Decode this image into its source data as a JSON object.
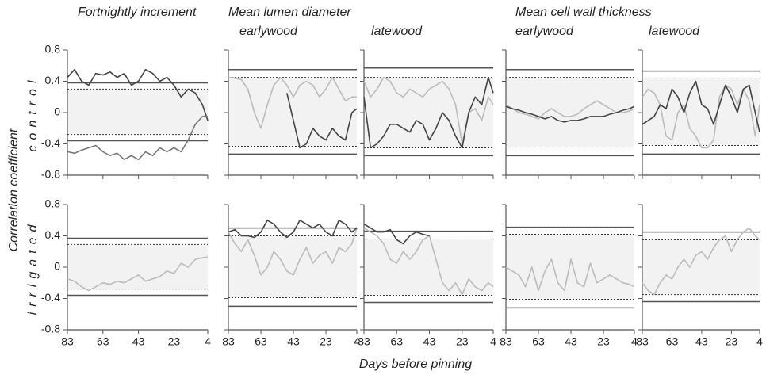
{
  "figure": {
    "groups": [
      {
        "title": "Fortnightly increment"
      },
      {
        "title": "Mean lumen diameter",
        "subtitles": [
          "earlywood",
          "latewood"
        ]
      },
      {
        "title": "Mean cell wall thickness",
        "subtitles": [
          "earlywood",
          "latewood"
        ]
      }
    ],
    "ylabel": "Correlation coefficient",
    "rows": [
      "control",
      "irrigated"
    ],
    "xlabel": "Days before pinning"
  },
  "chart_data": [
    {
      "type": "line",
      "x": [
        83,
        79,
        75,
        71,
        67,
        63,
        59,
        55,
        51,
        47,
        43,
        39,
        35,
        31,
        27,
        23,
        19,
        15,
        11,
        7,
        4
      ],
      "xlim": [
        83,
        4
      ],
      "ylim": [
        -0.8,
        0.8
      ],
      "xticks": [
        83,
        63,
        43,
        23,
        4
      ],
      "yticks": [
        0.8,
        0.4,
        0,
        -0.4,
        -0.8
      ],
      "thresholds": [
        0.38,
        -0.36
      ],
      "dotted": [
        0.3,
        -0.28
      ],
      "series": [
        {
          "color": "#444444",
          "values": [
            0.45,
            0.55,
            0.4,
            0.35,
            0.5,
            0.48,
            0.52,
            0.45,
            0.5,
            0.35,
            0.4,
            0.55,
            0.5,
            0.4,
            0.45,
            0.35,
            0.2,
            0.3,
            0.25,
            0.1,
            -0.1
          ]
        },
        {
          "color": "#777777",
          "values": [
            -0.5,
            -0.52,
            -0.48,
            -0.45,
            -0.42,
            -0.5,
            -0.55,
            -0.52,
            -0.6,
            -0.55,
            -0.6,
            -0.5,
            -0.55,
            -0.45,
            -0.5,
            -0.45,
            -0.5,
            -0.35,
            -0.15,
            -0.05,
            -0.05
          ]
        }
      ]
    },
    {
      "type": "line",
      "x": [
        83,
        79,
        75,
        71,
        67,
        63,
        59,
        55,
        51,
        47,
        43,
        39,
        35,
        31,
        27,
        23,
        19,
        15,
        11,
        7,
        4
      ],
      "xlim": [
        83,
        4
      ],
      "ylim": [
        -0.8,
        0.8
      ],
      "xticks": [
        83,
        63,
        43,
        23,
        4
      ],
      "yticks": [
        0.8,
        0.4,
        0,
        -0.4,
        -0.8
      ],
      "thresholds": [
        0.55,
        -0.53
      ],
      "dotted": [
        0.45,
        -0.43
      ],
      "series": [
        {
          "color": "#bbbbbb",
          "values": [
            0.45,
            0.44,
            0.42,
            0.3,
            0.0,
            -0.2,
            0.1,
            0.35,
            0.45,
            0.35,
            0.2,
            0.35,
            0.4,
            0.35,
            0.2,
            0.3,
            0.45,
            0.3,
            0.15,
            0.2,
            0.2
          ]
        },
        {
          "color": "#444444",
          "values": [
            null,
            null,
            null,
            null,
            null,
            null,
            null,
            null,
            null,
            0.25,
            -0.1,
            -0.45,
            -0.4,
            -0.2,
            -0.3,
            -0.35,
            -0.2,
            -0.3,
            -0.35,
            0.0,
            0.05
          ]
        }
      ]
    },
    {
      "type": "line",
      "x": [
        83,
        79,
        75,
        71,
        67,
        63,
        59,
        55,
        51,
        47,
        43,
        39,
        35,
        31,
        27,
        23,
        19,
        15,
        11,
        7,
        4
      ],
      "xlim": [
        83,
        4
      ],
      "ylim": [
        -0.8,
        0.8
      ],
      "xticks": [
        83,
        63,
        43,
        23,
        4
      ],
      "yticks": [
        0.8,
        0.4,
        0,
        -0.4,
        -0.8
      ],
      "thresholds": [
        0.57,
        -0.55
      ],
      "dotted": [
        0.45,
        -0.45
      ],
      "series": [
        {
          "color": "#bbbbbb",
          "values": [
            0.4,
            0.2,
            0.3,
            0.45,
            0.4,
            0.25,
            0.2,
            0.3,
            0.25,
            0.2,
            0.3,
            0.35,
            0.4,
            0.3,
            0.1,
            -0.4,
            0.0,
            0.05,
            -0.1,
            0.2,
            0.1
          ]
        },
        {
          "color": "#444444",
          "values": [
            0.2,
            -0.45,
            -0.4,
            -0.3,
            -0.15,
            -0.15,
            -0.2,
            -0.25,
            -0.1,
            -0.15,
            -0.35,
            -0.2,
            0.0,
            -0.1,
            -0.3,
            -0.45,
            0.0,
            0.2,
            0.1,
            0.45,
            0.25
          ]
        }
      ]
    },
    {
      "type": "line",
      "x": [
        83,
        79,
        75,
        71,
        67,
        63,
        59,
        55,
        51,
        47,
        43,
        39,
        35,
        31,
        27,
        23,
        19,
        15,
        11,
        7,
        4
      ],
      "xlim": [
        83,
        4
      ],
      "ylim": [
        -0.8,
        0.8
      ],
      "xticks": [
        83,
        63,
        43,
        23,
        4
      ],
      "yticks": [
        0.8,
        0.4,
        0,
        -0.4,
        -0.8
      ],
      "thresholds": [
        0.55,
        -0.55
      ],
      "dotted": [
        0.45,
        -0.44
      ],
      "series": [
        {
          "color": "#bbbbbb",
          "values": [
            0.1,
            0.05,
            0.0,
            -0.02,
            -0.05,
            -0.08,
            0.0,
            0.05,
            0.0,
            -0.05,
            -0.05,
            -0.02,
            0.05,
            0.1,
            0.15,
            0.1,
            0.05,
            0.0,
            0.0,
            0.02,
            0.05
          ]
        },
        {
          "color": "#444444",
          "values": [
            0.08,
            0.05,
            0.03,
            0.0,
            -0.02,
            -0.05,
            -0.08,
            -0.05,
            -0.1,
            -0.12,
            -0.1,
            -0.1,
            -0.08,
            -0.05,
            -0.05,
            -0.05,
            -0.02,
            0.0,
            0.03,
            0.05,
            0.08
          ]
        }
      ]
    },
    {
      "type": "line",
      "x": [
        83,
        79,
        75,
        71,
        67,
        63,
        59,
        55,
        51,
        47,
        43,
        39,
        35,
        31,
        27,
        23,
        19,
        15,
        11,
        7,
        4
      ],
      "xlim": [
        83,
        4
      ],
      "ylim": [
        -0.8,
        0.8
      ],
      "xticks": [
        83,
        63,
        43,
        23,
        4
      ],
      "yticks": [
        0.8,
        0.4,
        0,
        -0.4,
        -0.8
      ],
      "thresholds": [
        0.53,
        -0.53
      ],
      "dotted": [
        0.44,
        -0.42
      ],
      "series": [
        {
          "color": "#bbbbbb",
          "values": [
            0.2,
            0.3,
            0.25,
            0.1,
            -0.3,
            -0.35,
            0.0,
            0.1,
            -0.2,
            -0.3,
            -0.45,
            -0.45,
            -0.35,
            0.2,
            0.35,
            0.3,
            0.1,
            0.3,
            0.15,
            -0.3,
            0.1
          ]
        },
        {
          "color": "#444444",
          "values": [
            -0.15,
            -0.1,
            -0.05,
            0.1,
            0.05,
            0.3,
            0.2,
            0.0,
            0.25,
            0.4,
            0.1,
            0.05,
            -0.15,
            0.1,
            0.35,
            0.2,
            0.0,
            0.3,
            0.35,
            0.0,
            -0.25
          ]
        }
      ]
    },
    {
      "type": "line",
      "x": [
        83,
        79,
        75,
        71,
        67,
        63,
        59,
        55,
        51,
        47,
        43,
        39,
        35,
        31,
        27,
        23,
        19,
        15,
        11,
        7,
        4
      ],
      "xlim": [
        83,
        4
      ],
      "ylim": [
        -0.8,
        0.8
      ],
      "xticks": [
        83,
        63,
        43,
        23,
        4
      ],
      "yticks": [
        0.8,
        0.4,
        0,
        -0.4,
        -0.8
      ],
      "thresholds": [
        0.37,
        -0.36
      ],
      "dotted": [
        0.29,
        -0.28
      ],
      "series": [
        {
          "color": "#bbbbbb",
          "values": [
            -0.15,
            -0.18,
            -0.25,
            -0.3,
            -0.25,
            -0.2,
            -0.22,
            -0.18,
            -0.2,
            -0.15,
            -0.1,
            -0.18,
            -0.15,
            -0.12,
            -0.05,
            -0.08,
            0.05,
            0.0,
            0.1,
            0.12,
            0.13
          ]
        }
      ]
    },
    {
      "type": "line",
      "x": [
        83,
        79,
        75,
        71,
        67,
        63,
        59,
        55,
        51,
        47,
        43,
        39,
        35,
        31,
        27,
        23,
        19,
        15,
        11,
        7,
        4
      ],
      "xlim": [
        83,
        4
      ],
      "ylim": [
        -0.8,
        0.8
      ],
      "xticks": [
        83,
        63,
        43,
        23,
        4
      ],
      "yticks": [
        0.8,
        0.4,
        0,
        -0.4,
        -0.8
      ],
      "thresholds": [
        0.5,
        -0.5
      ],
      "dotted": [
        0.4,
        -0.39
      ],
      "series": [
        {
          "color": "#bbbbbb",
          "values": [
            0.45,
            0.3,
            0.2,
            0.35,
            0.15,
            -0.1,
            0.0,
            0.2,
            0.1,
            -0.05,
            -0.1,
            0.1,
            0.25,
            0.05,
            0.15,
            0.2,
            0.05,
            0.25,
            0.2,
            0.3,
            0.5
          ]
        },
        {
          "color": "#444444",
          "values": [
            0.45,
            0.48,
            0.4,
            0.4,
            0.38,
            0.45,
            0.6,
            0.55,
            0.45,
            0.38,
            0.45,
            0.6,
            0.55,
            0.5,
            0.55,
            0.45,
            0.4,
            0.6,
            0.55,
            0.45,
            0.5
          ]
        }
      ]
    },
    {
      "type": "line",
      "x": [
        83,
        79,
        75,
        71,
        67,
        63,
        59,
        55,
        51,
        47,
        43,
        39,
        35,
        31,
        27,
        23,
        19,
        15,
        11,
        7,
        4
      ],
      "xlim": [
        83,
        4
      ],
      "ylim": [
        -0.8,
        0.8
      ],
      "xticks": [
        83,
        63,
        43,
        23,
        4
      ],
      "yticks": [
        0.8,
        0.4,
        0,
        -0.4,
        -0.8
      ],
      "thresholds": [
        0.46,
        -0.45
      ],
      "dotted": [
        0.36,
        -0.36
      ],
      "series": [
        {
          "color": "#bbbbbb",
          "values": [
            0.5,
            0.45,
            0.4,
            0.3,
            0.1,
            0.05,
            0.2,
            0.1,
            0.2,
            0.35,
            0.4,
            0.1,
            -0.2,
            -0.3,
            -0.2,
            -0.35,
            -0.15,
            -0.25,
            -0.3,
            -0.2,
            -0.25
          ]
        },
        {
          "color": "#444444",
          "values": [
            0.55,
            0.5,
            0.45,
            0.45,
            0.48,
            0.35,
            0.3,
            0.4,
            0.45,
            0.42,
            0.4,
            null,
            null,
            null,
            null,
            null,
            null,
            null,
            null,
            null,
            null
          ]
        }
      ]
    },
    {
      "type": "line",
      "x": [
        83,
        79,
        75,
        71,
        67,
        63,
        59,
        55,
        51,
        47,
        43,
        39,
        35,
        31,
        27,
        23,
        19,
        15,
        11,
        7,
        4
      ],
      "xlim": [
        83,
        4
      ],
      "ylim": [
        -0.8,
        0.8
      ],
      "xticks": [
        83,
        63,
        43,
        23,
        4
      ],
      "yticks": [
        0.8,
        0.4,
        0,
        -0.4,
        -0.8
      ],
      "thresholds": [
        0.51,
        -0.52
      ],
      "dotted": [
        0.42,
        -0.41
      ],
      "series": [
        {
          "color": "#bbbbbb",
          "values": [
            0.0,
            -0.05,
            -0.1,
            -0.25,
            0.0,
            -0.3,
            -0.05,
            0.1,
            -0.2,
            -0.3,
            0.1,
            -0.2,
            -0.25,
            0.05,
            -0.2,
            -0.15,
            -0.1,
            -0.15,
            -0.2,
            -0.22,
            -0.25
          ]
        }
      ]
    },
    {
      "type": "line",
      "x": [
        83,
        79,
        75,
        71,
        67,
        63,
        59,
        55,
        51,
        47,
        43,
        39,
        35,
        31,
        27,
        23,
        19,
        15,
        11,
        7,
        4
      ],
      "xlim": [
        83,
        4
      ],
      "ylim": [
        -0.8,
        0.8
      ],
      "xticks": [
        83,
        63,
        43,
        23,
        4
      ],
      "yticks": [
        0.8,
        0.4,
        0,
        -0.4,
        -0.8
      ],
      "thresholds": [
        0.45,
        -0.44
      ],
      "dotted": [
        0.35,
        -0.35
      ],
      "series": [
        {
          "color": "#bbbbbb",
          "values": [
            -0.2,
            -0.3,
            -0.35,
            -0.2,
            -0.1,
            -0.15,
            0.0,
            0.1,
            0.0,
            0.15,
            0.2,
            0.1,
            0.25,
            0.35,
            0.4,
            0.2,
            0.35,
            0.45,
            0.5,
            0.4,
            0.35
          ]
        }
      ]
    }
  ]
}
